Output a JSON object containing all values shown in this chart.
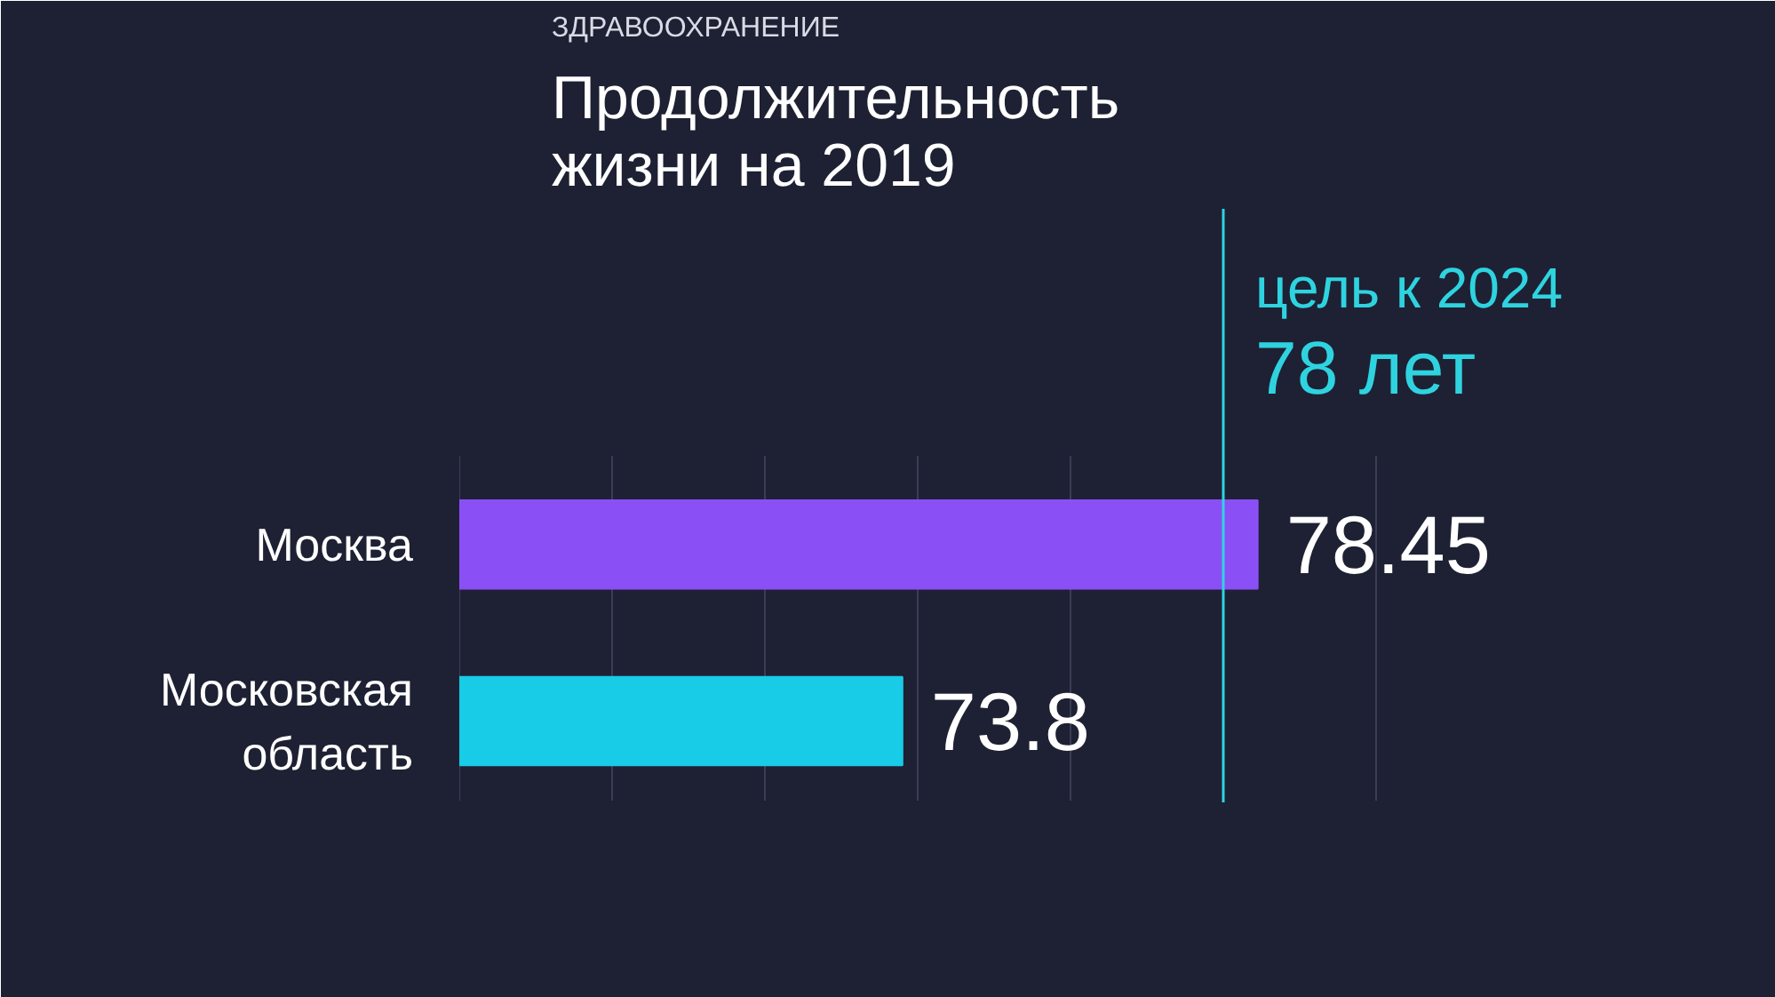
{
  "chart_data": {
    "type": "bar",
    "orientation": "horizontal",
    "subtitle": "ЗДРАВООХРАНЕНИЕ",
    "title": "Продолжительность\nжизни на 2019",
    "categories": [
      "Москва",
      "Московская\nобласть"
    ],
    "values": [
      78.45,
      73.8
    ],
    "colors": [
      "#8b4ff6",
      "#18cbe6"
    ],
    "data_labels": true,
    "xlim": [
      68,
      84
    ],
    "xticks": [
      {
        "value": 68,
        "label": null
      },
      {
        "value": 70,
        "label": null
      },
      {
        "value": 72,
        "label": null
      },
      {
        "value": 74,
        "label": null
      },
      {
        "value": 76,
        "label": null
      },
      {
        "value": 78,
        "label": null
      },
      {
        "value": 80,
        "label": null
      }
    ],
    "grid": "x",
    "tick_labels": "y",
    "ref_lines": [
      {
        "axis": "x",
        "value": 78,
        "label": "цель к 2024\n78 лет",
        "color": "#2fd3e0"
      }
    ]
  }
}
